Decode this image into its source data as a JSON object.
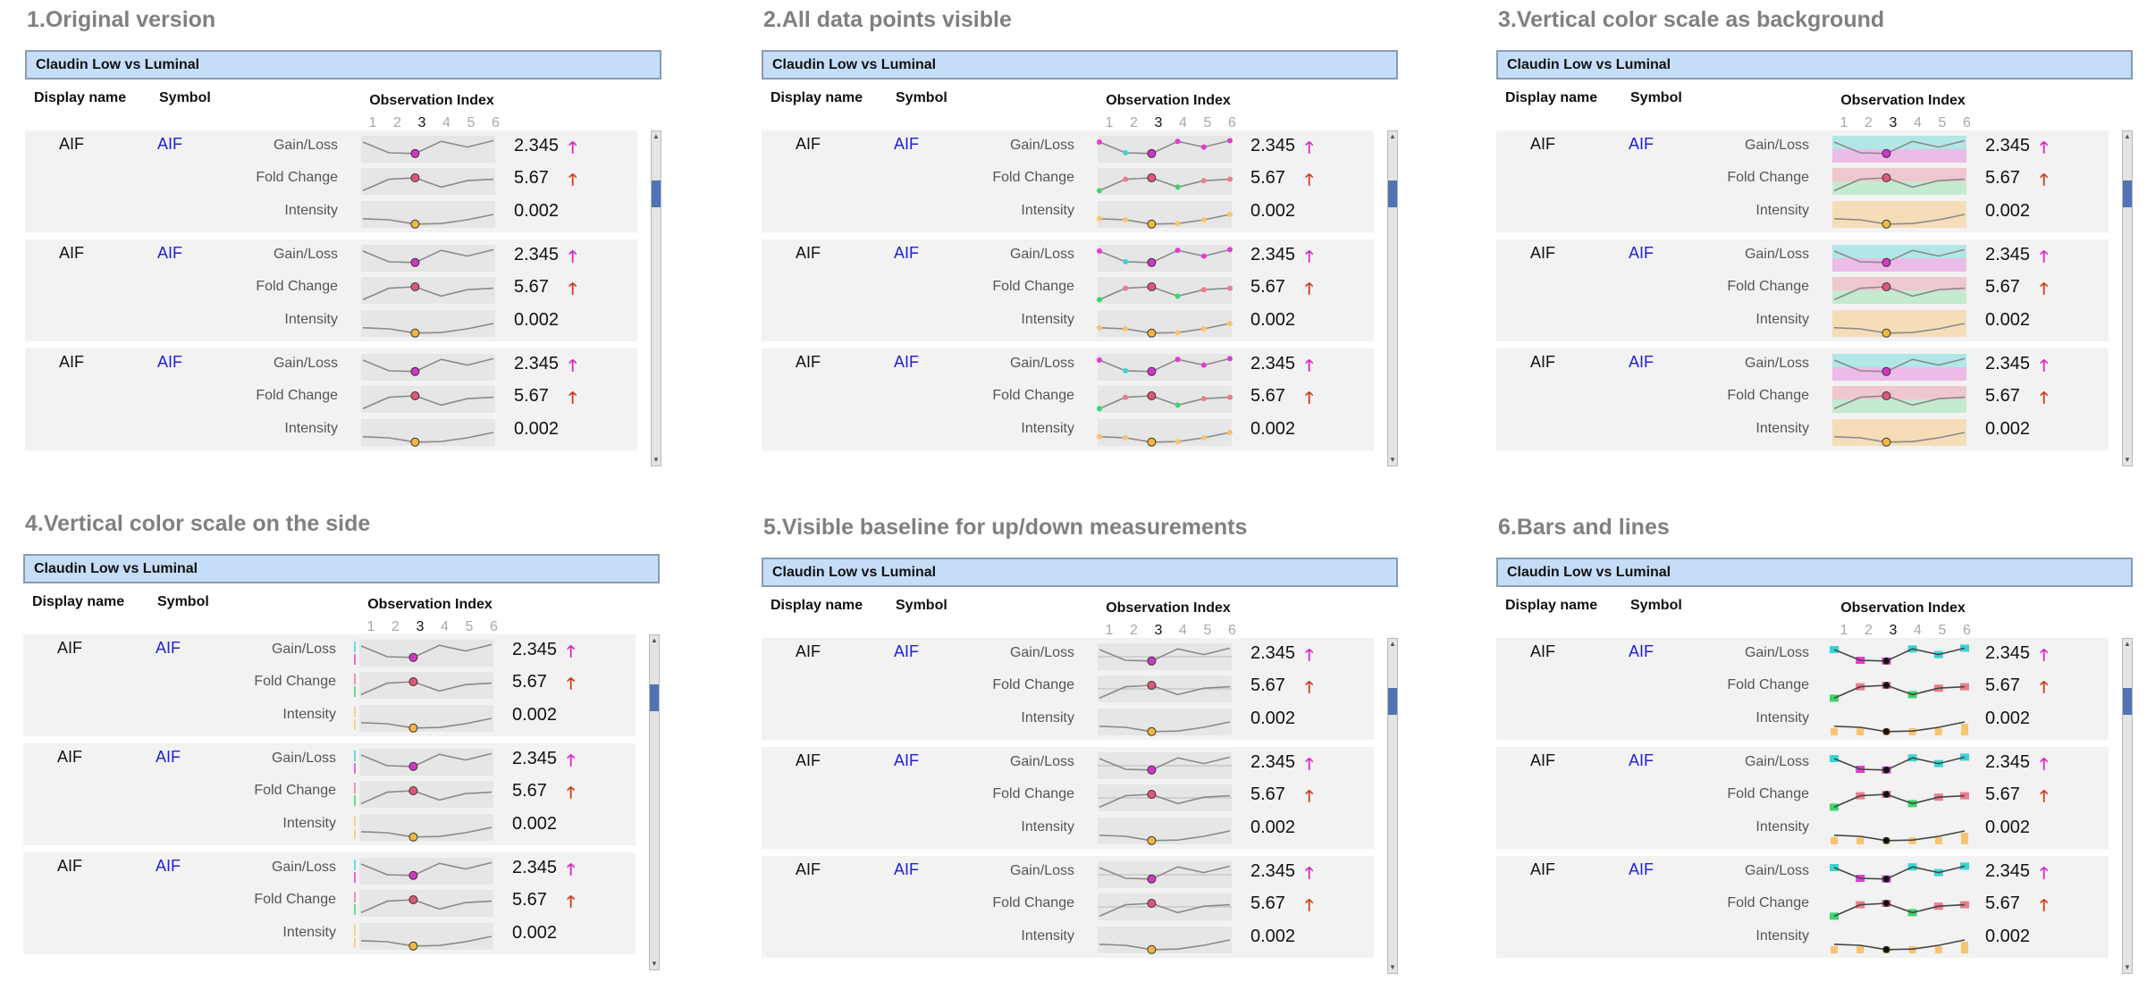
{
  "colors": {
    "header_bg": "#c6ddf7",
    "header_border": "#8a9bb4",
    "title": "#808080",
    "row_bg": "#f2f2f2",
    "symbol": "#2020d8",
    "highlight_gain": "#d534c8",
    "highlight_fold": "#e25577",
    "highlight_intensity": "#f4b63c",
    "up_arrow_gain": "#dd22cc",
    "up_arrow_fold": "#d03a1a",
    "pos_cyan": "#39d4d4",
    "pos_magenta": "#e23bd1",
    "fold_pink": "#ec7b8e",
    "fold_green": "#3dd46a",
    "intensity_orange": "#f8c471"
  },
  "common": {
    "table_title": "Claudin Low vs Luminal",
    "col_display": "Display name",
    "col_symbol": "Symbol",
    "obs_title": "Observation Index",
    "ticks": [
      "1",
      "2",
      "3",
      "4",
      "5",
      "6"
    ],
    "active_tick": 3,
    "metrics": [
      "Gain/Loss",
      "Fold Change",
      "Intensity"
    ],
    "values": [
      "2.345",
      "5.67",
      "0.002"
    ],
    "arrows": [
      "up-arrow-icon",
      "up-arrow-icon"
    ],
    "rows": [
      {
        "display": "AIF",
        "symbol": "AIF"
      },
      {
        "display": "AIF",
        "symbol": "AIF"
      },
      {
        "display": "AIF",
        "symbol": "AIF"
      }
    ],
    "arrow_glyph": "🡑"
  },
  "panels": [
    {
      "title": "1.Original version",
      "variant": "original"
    },
    {
      "title": "2.All data points visible",
      "variant": "points"
    },
    {
      "title": "3.Vertical color scale as background",
      "variant": "bgscale"
    },
    {
      "title": "4.Vertical color scale on the side",
      "variant": "sidescale"
    },
    {
      "title": "5.Visible baseline for up/down measurements",
      "variant": "baseline"
    },
    {
      "title": "6.Bars and lines",
      "variant": "bars"
    }
  ],
  "chart_data": {
    "type": "line",
    "x": [
      1,
      2,
      3,
      4,
      5,
      6
    ],
    "highlighted_x": 3,
    "series": [
      {
        "name": "Gain/Loss",
        "values": [
          1.0,
          -0.5,
          -0.6,
          1.1,
          0.3,
          1.2
        ],
        "ylim": [
          -1.5,
          1.5
        ]
      },
      {
        "name": "Fold Change",
        "values": [
          -1.3,
          0.3,
          0.5,
          -0.8,
          0.1,
          0.3
        ],
        "ylim": [
          -1.5,
          1.5
        ]
      },
      {
        "name": "Intensity",
        "values": [
          0.6,
          0.5,
          0.1,
          0.15,
          0.5,
          1.0
        ],
        "ylim": [
          0,
          2
        ]
      }
    ],
    "xlabel": "Observation Index",
    "legend": "none"
  }
}
